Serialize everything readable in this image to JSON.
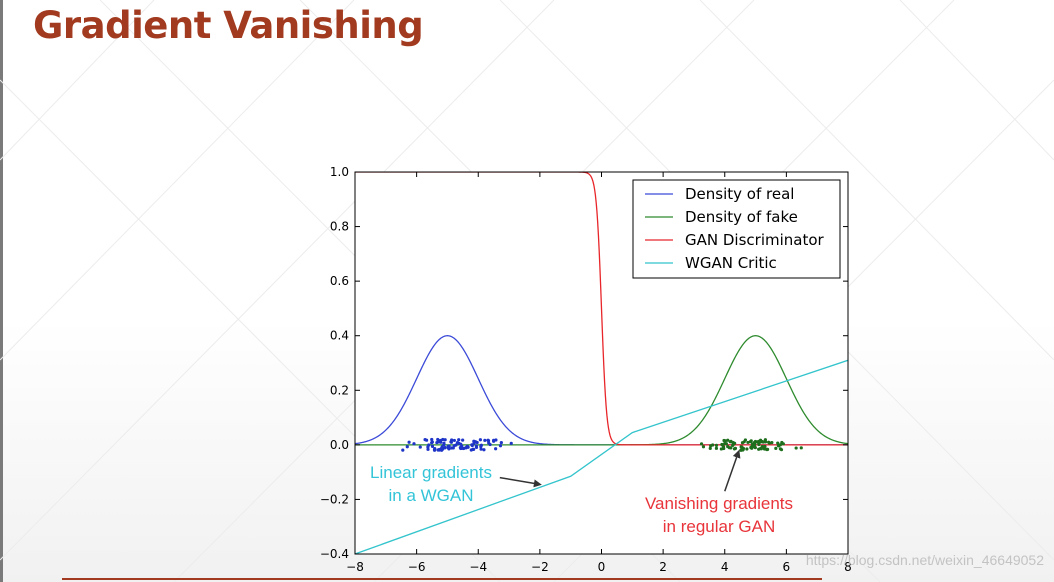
{
  "slide": {
    "title": "Gradient Vanishing",
    "accent_color": "#a23a1f"
  },
  "chart_data": {
    "type": "line",
    "xlim": [
      -8,
      8
    ],
    "ylim": [
      -0.4,
      1.0
    ],
    "xticks": [
      -8,
      -6,
      -4,
      -2,
      0,
      2,
      4,
      6,
      8
    ],
    "xtick_labels": [
      "−8",
      "−6",
      "−4",
      "−2",
      "0",
      "2",
      "4",
      "6",
      "8"
    ],
    "yticks": [
      -0.4,
      -0.2,
      0.0,
      0.2,
      0.4,
      0.6,
      0.8,
      1.0
    ],
    "ytick_labels": [
      "−0.4",
      "−0.2",
      "0.0",
      "0.2",
      "0.4",
      "0.6",
      "0.8",
      "1.0"
    ],
    "grid": false,
    "legend_position": "top-right",
    "series": [
      {
        "name": "Density of real",
        "color": "#3c4bd8",
        "kind": "gaussian",
        "mean": -5,
        "std": 1,
        "peak": 0.4
      },
      {
        "name": "Density of fake",
        "color": "#2e8b2e",
        "kind": "gaussian",
        "mean": 5,
        "std": 1,
        "peak": 0.4
      },
      {
        "name": "GAN Discriminator",
        "color": "#e8262a",
        "kind": "sigmoid",
        "center": 0,
        "steepness": 12
      },
      {
        "name": "WGAN Critic",
        "color": "#33c4cc",
        "kind": "polyline",
        "x": [
          -8,
          -1,
          1,
          8
        ],
        "y": [
          -0.4,
          -0.115,
          0.045,
          0.31
        ]
      }
    ],
    "scatter": [
      {
        "name": "real samples",
        "color": "#1f35c8",
        "x_range": [
          -6.9,
          -2.2
        ],
        "y_range": [
          -0.02,
          0.02
        ],
        "count": 90
      },
      {
        "name": "fake samples",
        "color": "#1e6e1e",
        "x_range": [
          2.8,
          6.9
        ],
        "y_range": [
          -0.02,
          0.02
        ],
        "count": 90
      }
    ],
    "annotations": [
      {
        "lines": [
          "Linear gradients",
          "in a WGAN"
        ],
        "color": "#33c4d8",
        "arrow_from": [
          -3.3,
          -0.12
        ],
        "arrow_to": [
          -2.0,
          -0.145
        ]
      },
      {
        "lines": [
          "Vanishing gradients",
          "in regular GAN"
        ],
        "color": "#e8343a",
        "arrow_from": [
          4.0,
          -0.17
        ],
        "arrow_to": [
          4.45,
          -0.025
        ]
      }
    ]
  },
  "watermark": "https://blog.csdn.net/weixin_46649052"
}
